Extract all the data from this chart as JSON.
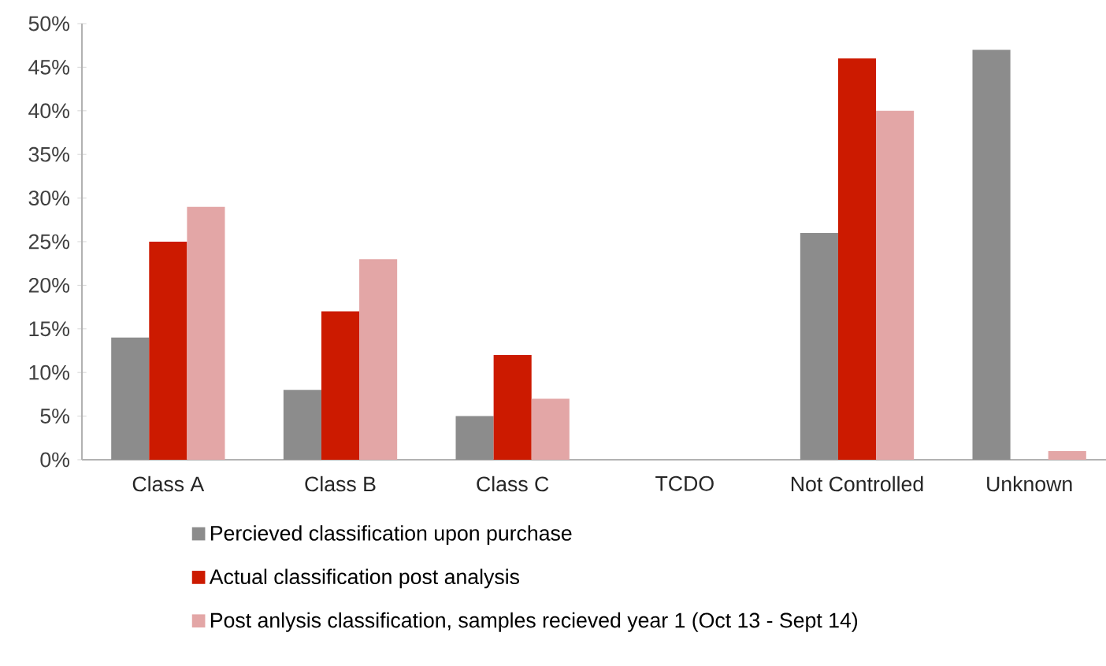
{
  "chart_data": {
    "type": "bar",
    "categories": [
      "Class A",
      "Class B",
      "Class C",
      "TCDO",
      "Not Controlled",
      "Unknown"
    ],
    "series": [
      {
        "name": "Percieved classification upon purchase",
        "color": "#8c8c8c",
        "values": [
          14,
          8,
          5,
          0,
          26,
          47
        ]
      },
      {
        "name": "Actual classification post analysis",
        "color": "#cc1a00",
        "values": [
          25,
          17,
          12,
          0,
          46,
          0
        ]
      },
      {
        "name": "Post anlysis classification, samples recieved year 1 (Oct 13 - Sept 14)",
        "color": "#e3a6a6",
        "values": [
          29,
          23,
          7,
          0,
          40,
          1
        ]
      }
    ],
    "ylim": [
      0,
      50
    ],
    "yticks": [
      {
        "value": 0,
        "label": "0%"
      },
      {
        "value": 5,
        "label": "5%"
      },
      {
        "value": 10,
        "label": "10%"
      },
      {
        "value": 15,
        "label": "15%"
      },
      {
        "value": 20,
        "label": "20%"
      },
      {
        "value": 25,
        "label": "25%"
      },
      {
        "value": 30,
        "label": "30%"
      },
      {
        "value": 35,
        "label": "35%"
      },
      {
        "value": 40,
        "label": "40%"
      },
      {
        "value": 45,
        "label": "45%"
      },
      {
        "value": 50,
        "label": "50%"
      }
    ],
    "grid": false,
    "legend": "bottom"
  }
}
